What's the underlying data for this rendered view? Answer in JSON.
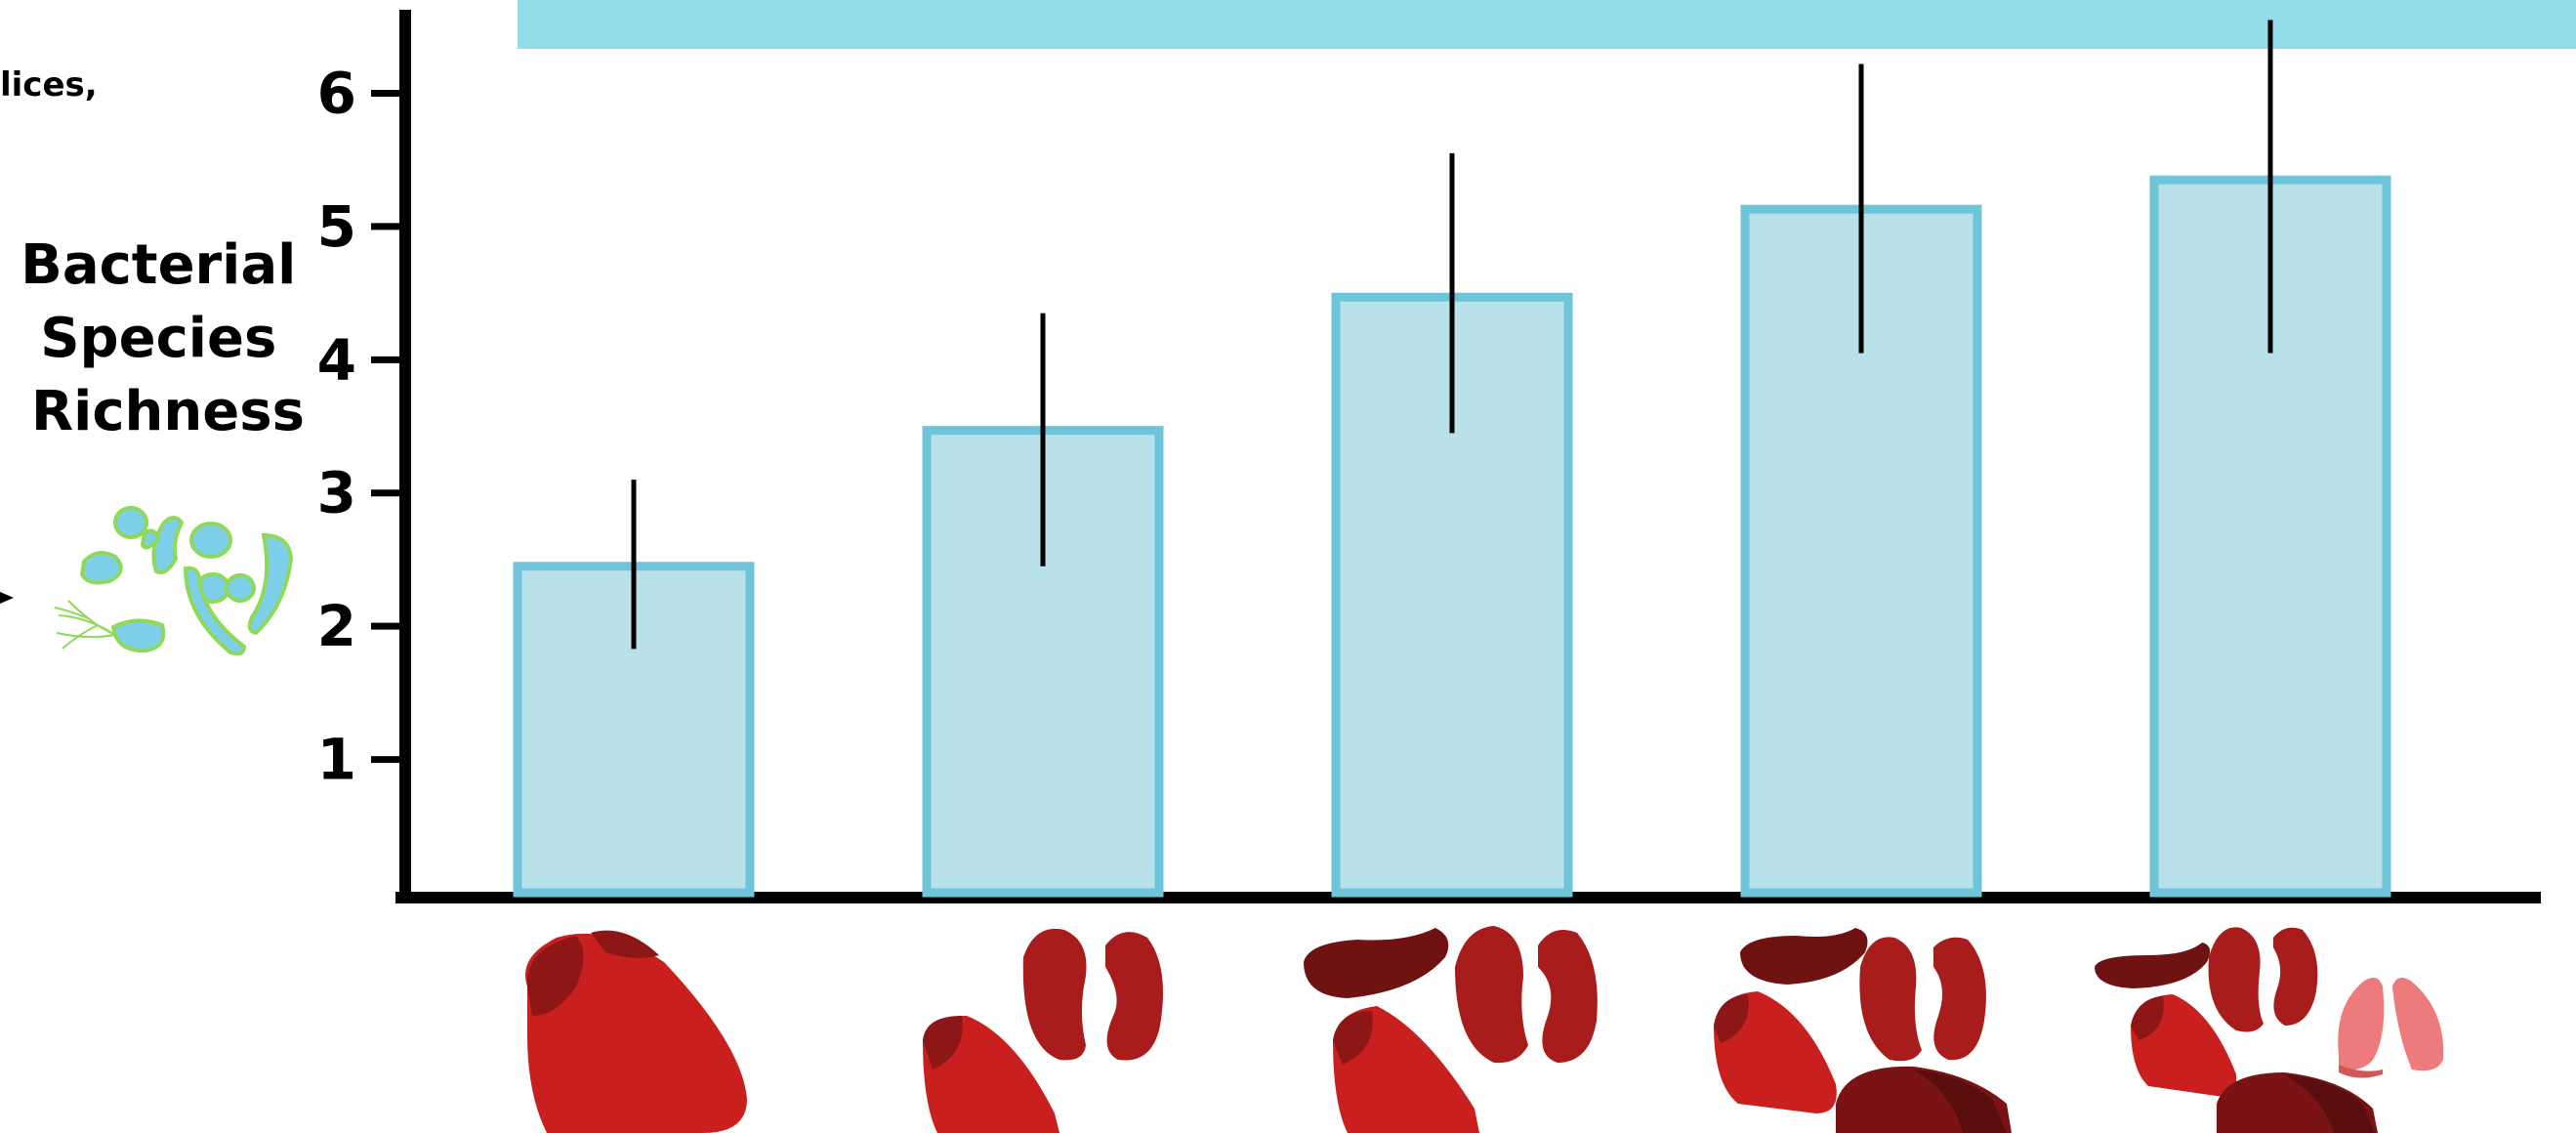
{
  "top_text": "lices,",
  "y_axis_title_lines": [
    "Bacterial",
    "Species",
    "Richness"
  ],
  "colors": {
    "bar_fill": "#b8e1ea",
    "bar_stroke": "#6ec4d8",
    "banner": "#92dde9",
    "axis": "#000000",
    "error_bar": "#000000",
    "bacteria_fill": "#7ed0ea",
    "bacteria_stroke": "#8ed95a",
    "organ_red": "#c91f1f",
    "organ_dark": "#9a1a1a",
    "organ_maroon": "#6e1212",
    "organ_pink": "#ee7b7b"
  },
  "icons": {
    "bacteria": "bacteria-cluster-icon",
    "organs": [
      "heart-icon",
      "heart-kidneys-icon",
      "heart-kidneys-spleen-icon",
      "heart-kidneys-spleen-liver-icon",
      "heart-kidneys-spleen-liver-lungs-icon"
    ]
  },
  "chart_data": {
    "type": "bar",
    "categories": [
      "",
      "",
      "",
      "",
      ""
    ],
    "values": [
      2.45,
      3.47,
      4.47,
      5.13,
      5.35
    ],
    "error_low": [
      1.83,
      2.45,
      3.45,
      4.05,
      4.05
    ],
    "error_high": [
      3.1,
      4.35,
      5.55,
      6.22,
      6.55
    ],
    "yticks": [
      1,
      2,
      3,
      4,
      5,
      6
    ],
    "ylim": [
      0,
      6.7
    ],
    "ylabel": "Bacterial Species Richness",
    "xlabel": "",
    "grid": false
  }
}
